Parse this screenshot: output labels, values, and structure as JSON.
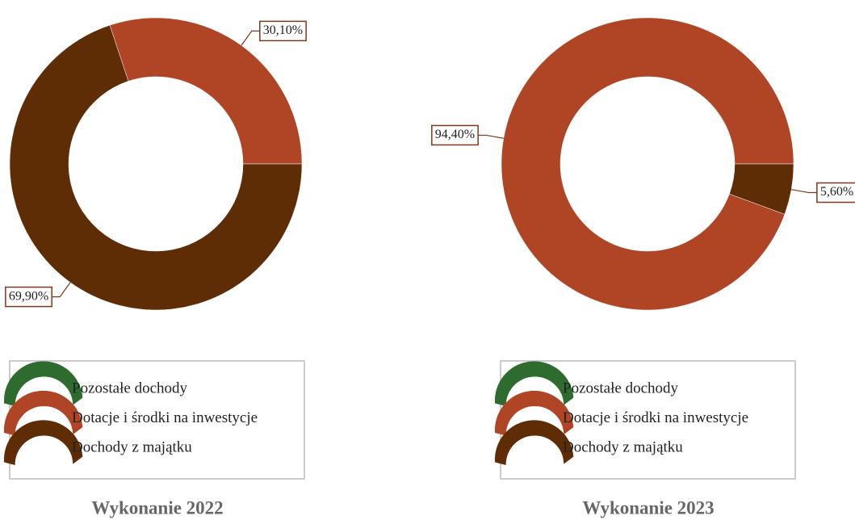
{
  "chart_data": [
    {
      "type": "pie",
      "title": "Wykonanie 2022",
      "categories": [
        "Pozostałe dochody",
        "Dotacje i środki na inwestycje",
        "Dochody z majątku"
      ],
      "values": [
        0,
        30.1,
        69.9
      ],
      "value_labels": [
        null,
        "30,10%",
        "69,90%"
      ],
      "colors": [
        "#2e6b2e",
        "#b04525",
        "#5e2c05"
      ]
    },
    {
      "type": "pie",
      "title": "Wykonanie 2023",
      "categories": [
        "Pozostałe dochody",
        "Dotacje i środki na inwestycje",
        "Dochody z majątku"
      ],
      "values": [
        0,
        94.4,
        5.6
      ],
      "value_labels": [
        null,
        "94,40%",
        "5,60%"
      ],
      "colors": [
        "#2e6b2e",
        "#b04525",
        "#5e2c05"
      ]
    }
  ]
}
